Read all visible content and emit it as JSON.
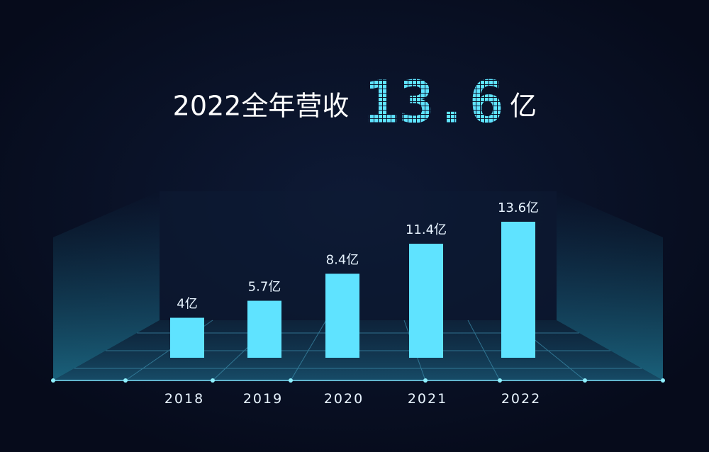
{
  "chart_data": {
    "type": "bar",
    "title": "2022全年营收",
    "title_highlight": "13.6",
    "title_unit": "亿",
    "categories": [
      "2018",
      "2019",
      "2020",
      "2021",
      "2022"
    ],
    "values": [
      4,
      5.7,
      8.4,
      11.4,
      13.6
    ],
    "value_labels": [
      "4亿",
      "5.7亿",
      "8.4亿",
      "11.4亿",
      "13.6亿"
    ],
    "color": "#5fe3ff"
  }
}
